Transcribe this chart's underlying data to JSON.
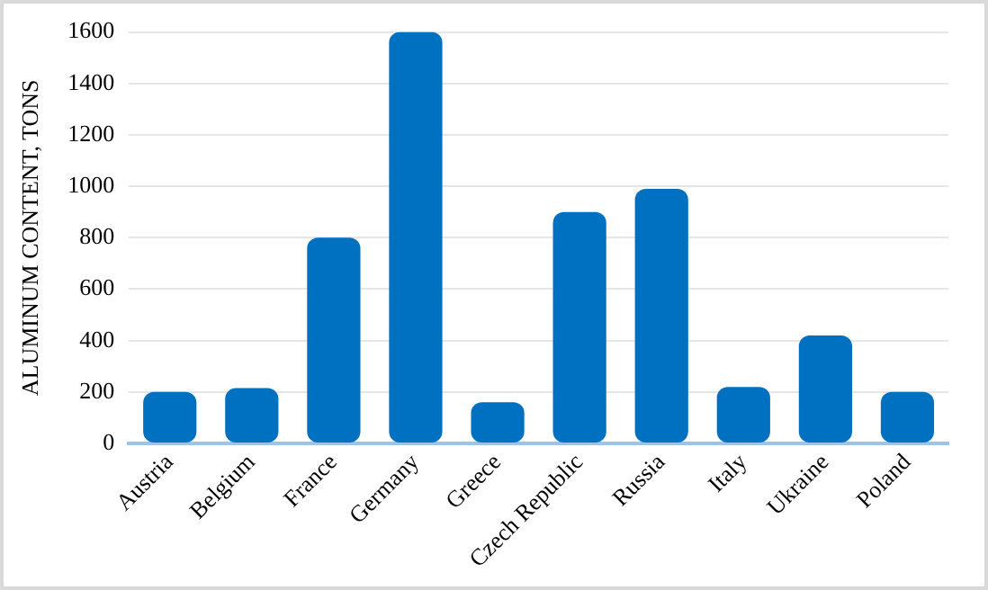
{
  "chart_data": {
    "type": "bar",
    "ylabel": "ALUMINUM CONTENT, TONS",
    "categories": [
      "Austria",
      "Belgium",
      "France",
      "Germany",
      "Greece",
      "Czech Republic",
      "Russia",
      "Italy",
      "Ukraine",
      "Poland"
    ],
    "values": [
      200,
      215,
      800,
      1600,
      160,
      900,
      990,
      220,
      420,
      200
    ],
    "color": "#0070c0",
    "ylim": [
      0,
      1600
    ],
    "yticks": [
      0,
      200,
      400,
      600,
      800,
      1000,
      1200,
      1400,
      1600
    ],
    "grid": "y",
    "legend": false
  }
}
